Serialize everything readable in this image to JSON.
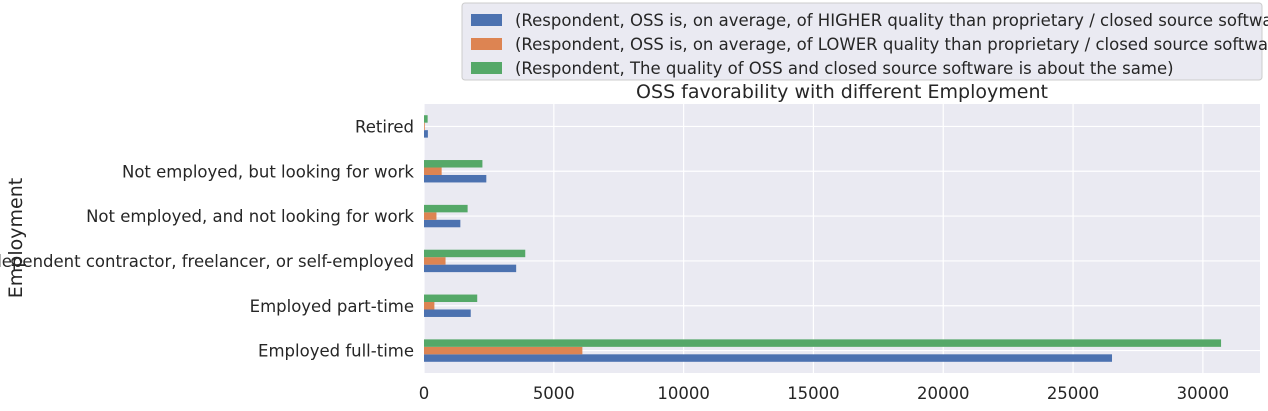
{
  "chart_data": {
    "type": "bar",
    "orientation": "horizontal",
    "title": "OSS favorability with different Employment",
    "xlabel": "",
    "ylabel": "Employment",
    "categories": [
      "Employed full-time",
      "Employed part-time",
      "Independent contractor, freelancer, or self-employed",
      "Not employed, and not looking for work",
      "Not employed, but looking for work",
      "Retired"
    ],
    "series": [
      {
        "name": "(Respondent, OSS is, on average, of HIGHER quality than proprietary / closed source software)",
        "color": "#4c72b0",
        "values": [
          26500,
          1800,
          3550,
          1400,
          2400,
          150
        ]
      },
      {
        "name": "(Respondent, OSS is, on average, of LOWER quality than proprietary / closed source software)",
        "color": "#dd8452",
        "values": [
          6100,
          400,
          830,
          480,
          680,
          30
        ]
      },
      {
        "name": "(Respondent, The quality of OSS and closed source software is about the same)",
        "color": "#55a868",
        "values": [
          30700,
          2050,
          3900,
          1680,
          2250,
          140
        ]
      }
    ],
    "xlim": [
      0,
      32200
    ],
    "xticks": [
      0,
      5000,
      10000,
      15000,
      20000,
      25000,
      30000
    ],
    "grid": true,
    "legend_position": "top-right, above plot"
  }
}
